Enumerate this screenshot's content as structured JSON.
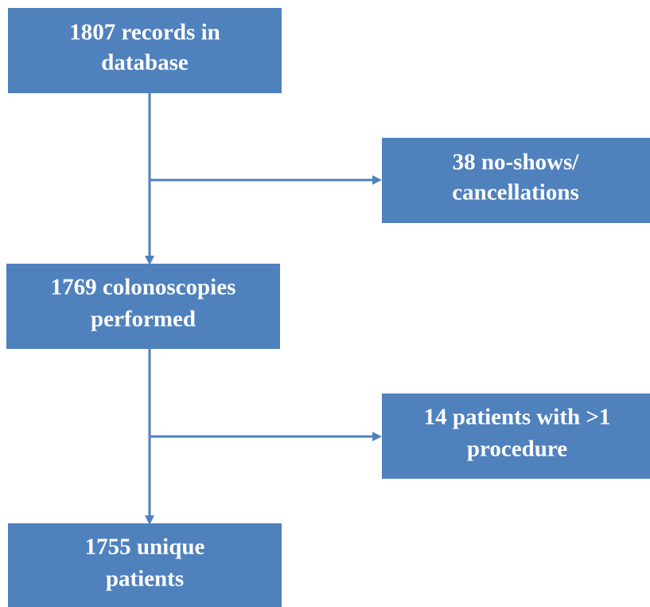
{
  "nodes": [
    {
      "lines": [
        "1807 records in",
        "database"
      ]
    },
    {
      "lines": [
        "38 no-shows/",
        "cancellations"
      ]
    },
    {
      "lines": [
        "1769 colonoscopies",
        "performed"
      ]
    },
    {
      "lines": [
        "14 patients with >1",
        "procedure"
      ]
    },
    {
      "lines": [
        "1755 unique",
        "patients"
      ]
    }
  ]
}
